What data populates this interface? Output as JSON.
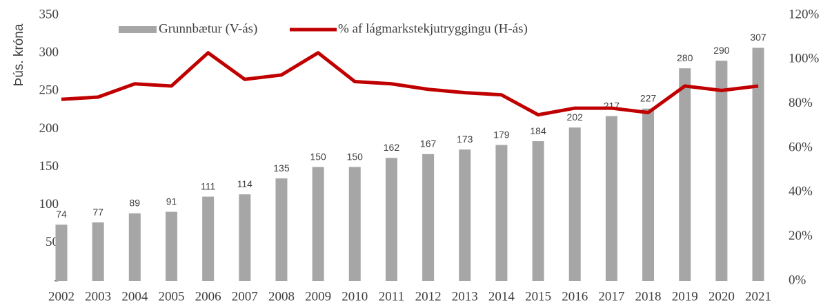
{
  "chart_data": {
    "type": "bar-line",
    "y_label": "Þús. króna",
    "categories": [
      "2002",
      "2003",
      "2004",
      "2005",
      "2006",
      "2007",
      "2008",
      "2009",
      "2010",
      "2011",
      "2012",
      "2013",
      "2014",
      "2015",
      "2016",
      "2017",
      "2018",
      "2019",
      "2020",
      "2021"
    ],
    "series": [
      {
        "name": "Grunnbætur (V-ás)",
        "type": "bar",
        "color": "#a6a6a6",
        "data_labels": true,
        "values": [
          74,
          77,
          89,
          91,
          111,
          114,
          135,
          150,
          150,
          162,
          167,
          173,
          179,
          184,
          202,
          217,
          227,
          280,
          290,
          307
        ]
      },
      {
        "name": "% af lágmarkstekjutryggingu (H-ás)",
        "type": "line",
        "axis": "y2",
        "color": "#c00000",
        "values": [
          82,
          83,
          89,
          88,
          103,
          91,
          93,
          103,
          90,
          89,
          86.5,
          85,
          84,
          75,
          78,
          78,
          76,
          88,
          86,
          88
        ]
      }
    ],
    "ylim": [
      0,
      350
    ],
    "yticks": [
      {
        "value": 0,
        "label": "-"
      },
      50,
      100,
      150,
      200,
      250,
      300,
      350
    ],
    "y2lim": [
      0,
      120
    ],
    "y2ticks": [
      {
        "value": 0,
        "label": "0%"
      },
      {
        "value": 20,
        "label": "20%"
      },
      {
        "value": 40,
        "label": "40%"
      },
      {
        "value": 60,
        "label": "60%"
      },
      {
        "value": 80,
        "label": "80%"
      },
      {
        "value": 100,
        "label": "100%"
      },
      {
        "value": 120,
        "label": "120%"
      }
    ],
    "legend": "top"
  }
}
